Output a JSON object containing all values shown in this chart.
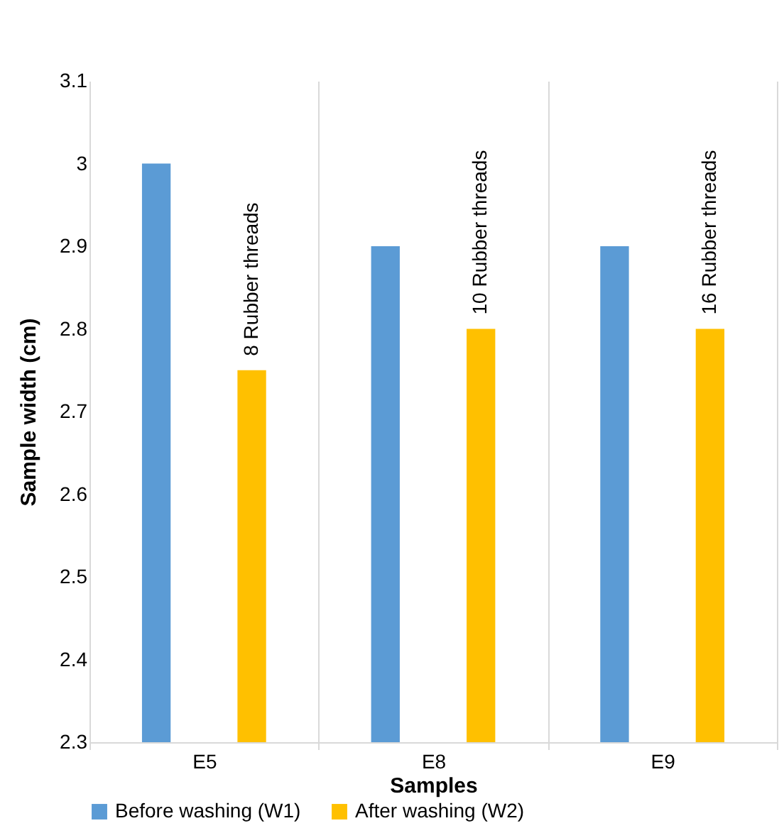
{
  "chart_data": {
    "type": "bar",
    "xlabel": "Samples",
    "ylabel": "Sample width (cm)",
    "categories": [
      "E5",
      "E8",
      "E9"
    ],
    "series": [
      {
        "name": "Before washing (W1)",
        "color": "#5b9bd5",
        "values": [
          3.0,
          2.9,
          2.9
        ]
      },
      {
        "name": "After washing (W2)",
        "color": "#ffc000",
        "values": [
          2.75,
          2.8,
          2.8
        ]
      }
    ],
    "ylim": [
      2.3,
      3.1
    ],
    "yticks": [
      2.3,
      2.4,
      2.5,
      2.6,
      2.7,
      2.8,
      2.9,
      3,
      3.1
    ],
    "grid": "x",
    "legend": "bottom",
    "annotations": [
      "8 Rubber threads",
      "10 Rubber threads",
      "16 Rubber threads"
    ]
  }
}
